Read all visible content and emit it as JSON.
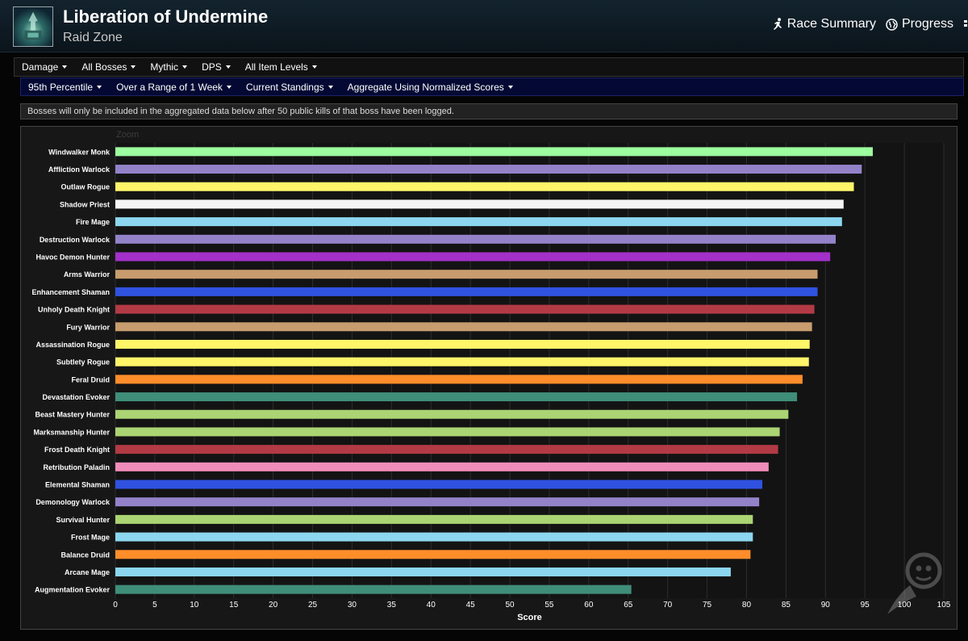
{
  "header": {
    "title": "Liberation of Undermine",
    "subtitle": "Raid Zone",
    "nav": [
      {
        "label": "Race Summary",
        "icon": "running-icon"
      },
      {
        "label": "Progress",
        "icon": "globe-icon"
      }
    ]
  },
  "filters_row1": [
    "Damage",
    "All Bosses",
    "Mythic",
    "DPS",
    "All Item Levels"
  ],
  "filters_row2": [
    "95th Percentile",
    "Over a Range of 1 Week",
    "Current Standings",
    "Aggregate Using Normalized Scores"
  ],
  "notice": "Bosses will only be included in the aggregated data below after 50 public kills of that boss have been logged.",
  "chart": {
    "zoom_label": "Zoom"
  },
  "chart_data": {
    "type": "bar",
    "orientation": "horizontal",
    "title": "",
    "xlabel": "Score",
    "ylabel": "",
    "xlim": [
      0,
      105
    ],
    "xticks": [
      0,
      5,
      10,
      15,
      20,
      25,
      30,
      35,
      40,
      45,
      50,
      55,
      60,
      65,
      70,
      75,
      80,
      85,
      90,
      95,
      100,
      105
    ],
    "grid": true,
    "legend": "none",
    "categories": [
      "Windwalker Monk",
      "Affliction Warlock",
      "Outlaw Rogue",
      "Shadow Priest",
      "Fire Mage",
      "Destruction Warlock",
      "Havoc Demon Hunter",
      "Arms Warrior",
      "Enhancement Shaman",
      "Unholy Death Knight",
      "Fury Warrior",
      "Assassination Rogue",
      "Subtlety Rogue",
      "Feral Druid",
      "Devastation Evoker",
      "Beast Mastery Hunter",
      "Marksmanship Hunter",
      "Frost Death Knight",
      "Retribution Paladin",
      "Elemental Shaman",
      "Demonology Warlock",
      "Survival Hunter",
      "Frost Mage",
      "Balance Druid",
      "Arcane Mage",
      "Augmentation Evoker"
    ],
    "values": [
      96.0,
      94.6,
      93.6,
      92.3,
      92.1,
      91.3,
      90.6,
      89.0,
      89.0,
      88.6,
      88.3,
      88.0,
      87.9,
      87.1,
      86.4,
      85.3,
      84.2,
      84.0,
      82.8,
      82.0,
      81.6,
      80.8,
      80.8,
      80.5,
      78.0,
      65.4
    ],
    "colors": [
      "#9dff9f",
      "#9482c9",
      "#fff569",
      "#f5f5f5",
      "#8cd6ef",
      "#9482c9",
      "#a330c9",
      "#c79c6e",
      "#2f52e0",
      "#b23a45",
      "#c79c6e",
      "#fff569",
      "#fff569",
      "#ff8d2a",
      "#3f8e79",
      "#abd473",
      "#abd473",
      "#b23a45",
      "#f08cba",
      "#2f52e0",
      "#9482c9",
      "#abd473",
      "#8cd6ef",
      "#ff8d2a",
      "#8cd6ef",
      "#3f8e79"
    ]
  }
}
